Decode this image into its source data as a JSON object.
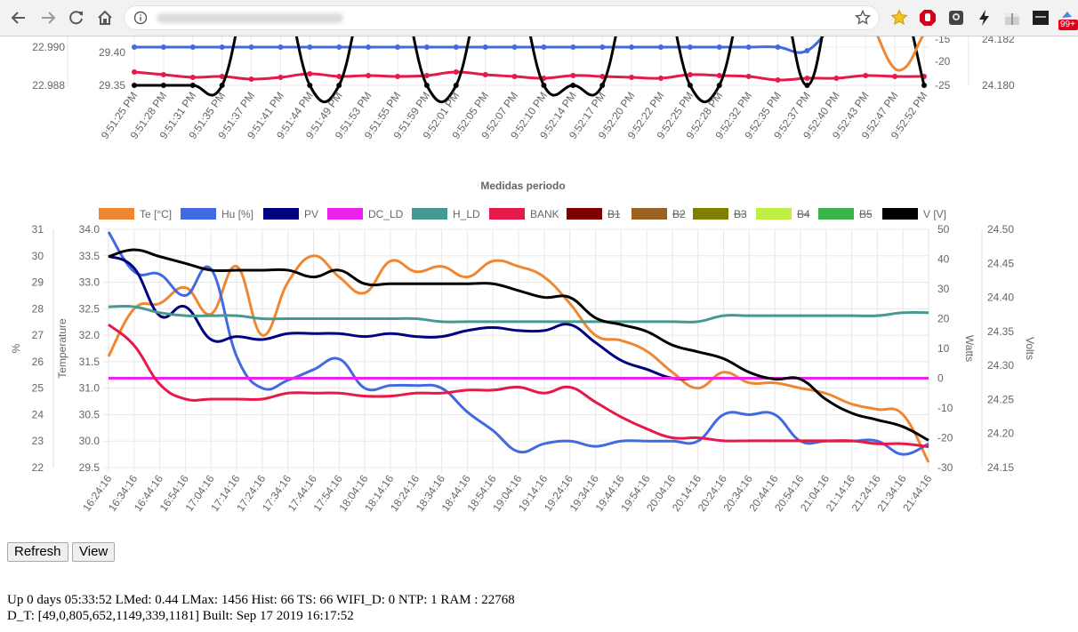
{
  "browser": {
    "back_icon": "arrow-left-icon",
    "forward_icon": "arrow-right-icon",
    "reload_icon": "reload-icon",
    "home_icon": "home-icon",
    "info_icon": "info-icon",
    "star_icon": "star-icon",
    "badge_text": "99+"
  },
  "top_chart": {
    "axis_left1_ticks": [
      "22.990",
      "22.988"
    ],
    "axis_left2_ticks": [
      "29.40",
      "29.35"
    ],
    "axis_right1_ticks": [
      "-15",
      "-20",
      "-25"
    ],
    "axis_right2_ticks": [
      "24.182",
      "24.180"
    ],
    "time_labels": [
      "9:51:25 PM",
      "9:51:28 PM",
      "9:51:31 PM",
      "9:51:35 PM",
      "9:51:37 PM",
      "9:51:41 PM",
      "9:51:44 PM",
      "9:51:49 PM",
      "9:51:53 PM",
      "9:51:55 PM",
      "9:51:59 PM",
      "9:52:01 PM",
      "9:52:05 PM",
      "9:52:07 PM",
      "9:52:10 PM",
      "9:52:14 PM",
      "9:52:17 PM",
      "9:52:20 PM",
      "9:52:22 PM",
      "9:52:25 PM",
      "9:52:28 PM",
      "9:52:32 PM",
      "9:52:35 PM",
      "9:52:37 PM",
      "9:52:40 PM",
      "9:52:43 PM",
      "9:52:47 PM",
      "9:52:52 PM"
    ]
  },
  "chart_data": {
    "type": "line",
    "title": "Medidas periodo",
    "legend": [
      {
        "name": "Te [°C]",
        "color": "#ef8732",
        "hidden": false
      },
      {
        "name": "Hu [%]",
        "color": "#4169e1",
        "hidden": false
      },
      {
        "name": "PV",
        "color": "#000080",
        "hidden": false
      },
      {
        "name": "DC_LD",
        "color": "#ee22ee",
        "hidden": false
      },
      {
        "name": "H_LD",
        "color": "#469990",
        "hidden": false
      },
      {
        "name": "BANK",
        "color": "#e6194b",
        "hidden": false
      },
      {
        "name": "B1",
        "color": "#800000",
        "hidden": true
      },
      {
        "name": "B2",
        "color": "#9a6324",
        "hidden": true
      },
      {
        "name": "B3",
        "color": "#808000",
        "hidden": true
      },
      {
        "name": "B4",
        "color": "#bfef45",
        "hidden": true
      },
      {
        "name": "B5",
        "color": "#3cb44b",
        "hidden": true
      },
      {
        "name": "V [V]",
        "color": "#000000",
        "hidden": false
      }
    ],
    "x_labels": [
      "16:24:16",
      "16:34:16",
      "16:44:16",
      "16:54:16",
      "17:04:16",
      "17:14:16",
      "17:24:16",
      "17:34:16",
      "17:44:16",
      "17:54:16",
      "18:04:16",
      "18:14:16",
      "18:24:16",
      "18:34:16",
      "18:44:16",
      "18:54:16",
      "19:04:16",
      "19:14:16",
      "19:24:16",
      "19:34:16",
      "19:44:16",
      "19:54:16",
      "20:04:16",
      "20:14:16",
      "20:24:16",
      "20:34:16",
      "20:44:16",
      "20:54:16",
      "21:04:16",
      "21:14:16",
      "21:24:16",
      "21:34:16",
      "21:44:16"
    ],
    "axes": {
      "pct": {
        "label": "%",
        "ticks": [
          "31",
          "30",
          "29",
          "28",
          "27",
          "26",
          "25",
          "24",
          "23",
          "22"
        ],
        "range": [
          22,
          31
        ]
      },
      "temperature": {
        "label": "Temperature",
        "ticks": [
          "34.0",
          "33.5",
          "33.0",
          "32.5",
          "32.0",
          "31.5",
          "31.0",
          "30.5",
          "30.0",
          "29.5"
        ],
        "range": [
          29.5,
          34.0
        ]
      },
      "watts": {
        "label": "Watts",
        "ticks": [
          "50",
          "40",
          "30",
          "20",
          "10",
          "0",
          "-10",
          "-20",
          "-30"
        ],
        "range": [
          -30,
          50
        ]
      },
      "volts": {
        "label": "Volts",
        "ticks": [
          "24.50",
          "24.45",
          "24.40",
          "24.35",
          "24.30",
          "24.25",
          "24.20",
          "24.15"
        ],
        "range": [
          24.15,
          24.5
        ]
      }
    },
    "series": [
      {
        "name": "Te [°C]",
        "axis": "temperature",
        "color": "#ef8732",
        "values": [
          31.6,
          32.5,
          32.6,
          32.9,
          32.4,
          33.3,
          32.0,
          33.0,
          33.5,
          33.1,
          32.8,
          33.4,
          33.2,
          33.3,
          33.1,
          33.4,
          33.3,
          33.1,
          32.6,
          32.0,
          31.9,
          31.7,
          31.3,
          31.0,
          31.3,
          31.1,
          31.1,
          31.0,
          30.9,
          30.7,
          30.6,
          30.5,
          29.6
        ]
      },
      {
        "name": "Hu [%]",
        "axis": "pct",
        "color": "#4169e1",
        "values": [
          30.9,
          29.4,
          29.3,
          28.5,
          29.5,
          26.2,
          25.0,
          25.3,
          25.7,
          26.1,
          25.0,
          25.1,
          25.1,
          25.0,
          24.1,
          23.4,
          22.6,
          22.9,
          23.0,
          22.8,
          23.0,
          23.0,
          23.0,
          23.0,
          24.0,
          24.0,
          24.0,
          23.0,
          23.0,
          23.0,
          23.0,
          22.5,
          22.9
        ]
      },
      {
        "name": "PV",
        "axis": "watts",
        "color": "#000080",
        "values": [
          41,
          37,
          21,
          24,
          13,
          14,
          13,
          15,
          15,
          15,
          14,
          15,
          14,
          14,
          16,
          17,
          16,
          16,
          18,
          12,
          6,
          3,
          0,
          0,
          0,
          0,
          0,
          0,
          0,
          0,
          0,
          0,
          0
        ]
      },
      {
        "name": "DC_LD",
        "axis": "watts",
        "color": "#ee22ee",
        "values": [
          0,
          0,
          0,
          0,
          0,
          0,
          0,
          0,
          0,
          0,
          0,
          0,
          0,
          0,
          0,
          0,
          0,
          0,
          0,
          0,
          0,
          0,
          0,
          0,
          0,
          0,
          0,
          0,
          0,
          0,
          0,
          0,
          0
        ]
      },
      {
        "name": "H_LD",
        "axis": "watts",
        "color": "#469990",
        "values": [
          24,
          24,
          22,
          21,
          21,
          21,
          20,
          20,
          20,
          20,
          20,
          20,
          20,
          19,
          19,
          19,
          19,
          19,
          19,
          19,
          19,
          19,
          19,
          19,
          21,
          21,
          21,
          21,
          21,
          21,
          21,
          22,
          22
        ]
      },
      {
        "name": "BANK",
        "axis": "watts",
        "color": "#e6194b",
        "values": [
          18,
          11,
          -2,
          -7,
          -7,
          -7,
          -7,
          -5,
          -5,
          -5,
          -6,
          -6,
          -5,
          -5,
          -4,
          -4,
          -3,
          -5,
          -3,
          -8,
          -13,
          -17,
          -20,
          -20,
          -21,
          -21,
          -21,
          -21,
          -21,
          -21,
          -22,
          -22,
          -23
        ]
      },
      {
        "name": "V [V]",
        "axis": "volts",
        "color": "#000000",
        "values": [
          24.46,
          24.47,
          24.46,
          24.45,
          24.44,
          24.44,
          24.44,
          24.44,
          24.43,
          24.44,
          24.42,
          24.42,
          24.42,
          24.42,
          24.42,
          24.42,
          24.41,
          24.4,
          24.4,
          24.37,
          24.36,
          24.35,
          24.33,
          24.32,
          24.31,
          24.29,
          24.28,
          24.28,
          24.25,
          24.23,
          24.22,
          24.21,
          24.19
        ]
      }
    ]
  },
  "controls": {
    "refresh_label": "Refresh",
    "view_label": "View"
  },
  "status": {
    "line1": "Up 0 days 05:33:52 LMed: 0.44 LMax: 1456 Hist: 66 TS: 66 WIFI_D: 0 NTP: 1 RAM : 22768",
    "line2": "D_T: [49,0,805,652,1149,339,1181] Built: Sep 17 2019 16:17:52"
  }
}
